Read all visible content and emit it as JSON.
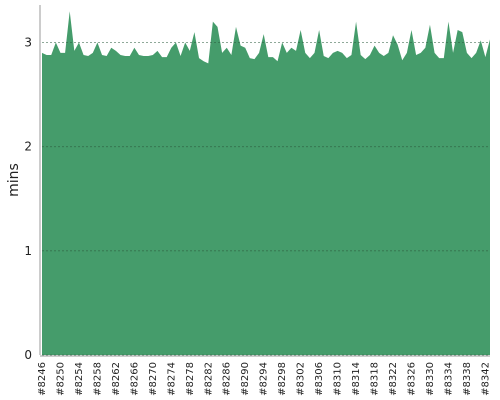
{
  "chart_data": {
    "type": "area",
    "y_label": "mins",
    "color": "#459c6b",
    "categories": [
      "#8246",
      null,
      null,
      null,
      "#8250",
      null,
      null,
      null,
      "#8254",
      null,
      null,
      null,
      "#8258",
      null,
      null,
      null,
      "#8262",
      null,
      null,
      null,
      "#8266",
      null,
      null,
      null,
      "#8270",
      null,
      null,
      null,
      "#8274",
      null,
      null,
      null,
      "#8278",
      null,
      null,
      null,
      "#8282",
      null,
      null,
      null,
      "#8286",
      null,
      null,
      null,
      "#8290",
      null,
      null,
      null,
      "#8294",
      null,
      null,
      null,
      "#8298",
      null,
      null,
      null,
      "#8302",
      null,
      null,
      null,
      "#8306",
      null,
      null,
      null,
      "#8310",
      null,
      null,
      null,
      "#8314",
      null,
      null,
      null,
      "#8318",
      null,
      null,
      null,
      "#8322",
      null,
      null,
      null,
      "#8326",
      null,
      null,
      null,
      "#8330",
      null,
      null,
      null,
      "#8334",
      null,
      null,
      null,
      "#8338",
      null,
      null,
      null,
      "#8342",
      null
    ],
    "values": [
      2.9,
      2.88,
      2.88,
      3.0,
      2.9,
      2.9,
      3.3,
      2.92,
      3.0,
      2.88,
      2.87,
      2.9,
      3.0,
      2.88,
      2.87,
      2.95,
      2.92,
      2.88,
      2.87,
      2.87,
      2.95,
      2.88,
      2.87,
      2.87,
      2.88,
      2.92,
      2.86,
      2.86,
      2.95,
      3.0,
      2.87,
      3.0,
      2.92,
      3.1,
      2.85,
      2.82,
      2.8,
      3.2,
      3.15,
      2.9,
      2.95,
      2.88,
      3.15,
      2.97,
      2.95,
      2.85,
      2.84,
      2.9,
      3.08,
      2.86,
      2.86,
      2.82,
      3.0,
      2.9,
      2.95,
      2.92,
      3.12,
      2.9,
      2.85,
      2.9,
      3.12,
      2.87,
      2.85,
      2.9,
      2.92,
      2.9,
      2.85,
      2.88,
      3.2,
      2.88,
      2.84,
      2.88,
      2.97,
      2.9,
      2.87,
      2.9,
      3.07,
      2.98,
      2.83,
      2.9,
      3.12,
      2.88,
      2.9,
      2.95,
      3.17,
      2.9,
      2.85,
      2.85,
      3.2,
      2.9,
      3.12,
      3.1,
      2.9,
      2.85,
      2.9,
      3.02,
      2.86,
      3.03
    ],
    "ylim": [
      0,
      3.36
    ],
    "yticks": [
      0,
      1,
      2,
      3
    ],
    "grid": true
  }
}
